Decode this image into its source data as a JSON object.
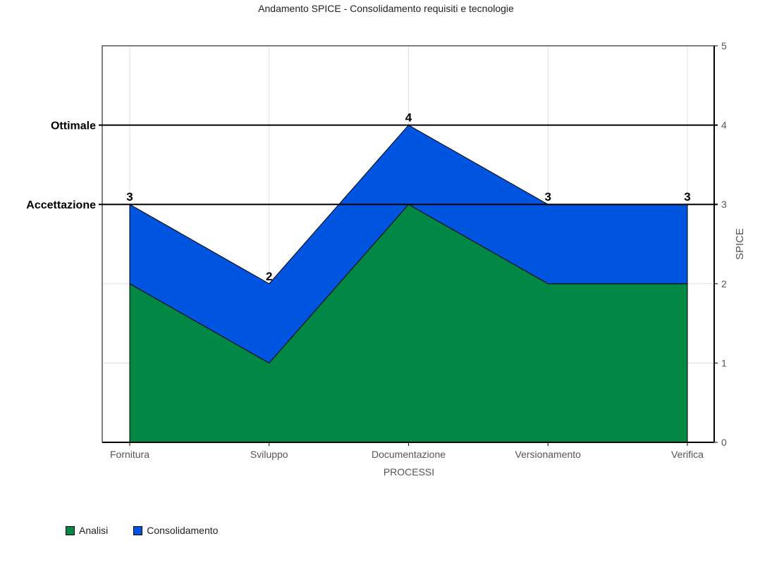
{
  "chart_data": {
    "type": "area",
    "stacked": true,
    "title": "Andamento SPICE -  Consolidamento requisiti e tecnologie",
    "xlabel": "PROCESSI",
    "ylabel": "SPICE",
    "categories": [
      "Fornitura",
      "Sviluppo",
      "Documentazione",
      "Versionamento",
      "Verifica"
    ],
    "series": [
      {
        "name": "Analisi",
        "values": [
          2,
          1,
          3,
          2,
          2
        ],
        "color": "#008844"
      },
      {
        "name": "Consolidamento",
        "values": [
          1,
          1,
          1,
          1,
          1
        ],
        "color": "#0055E0"
      }
    ],
    "data_labels": [
      "3",
      "2",
      "4",
      "3",
      "3"
    ],
    "ylim": [
      0,
      5
    ],
    "yticks": [
      "0",
      "1",
      "2",
      "3",
      "4",
      "5"
    ],
    "y_axis_side": "right",
    "reference_lines": [
      {
        "label": "Ottimale",
        "value": 4
      },
      {
        "label": "Accettazione",
        "value": 3
      }
    ],
    "grid": true,
    "legend_position": "bottom-left"
  }
}
